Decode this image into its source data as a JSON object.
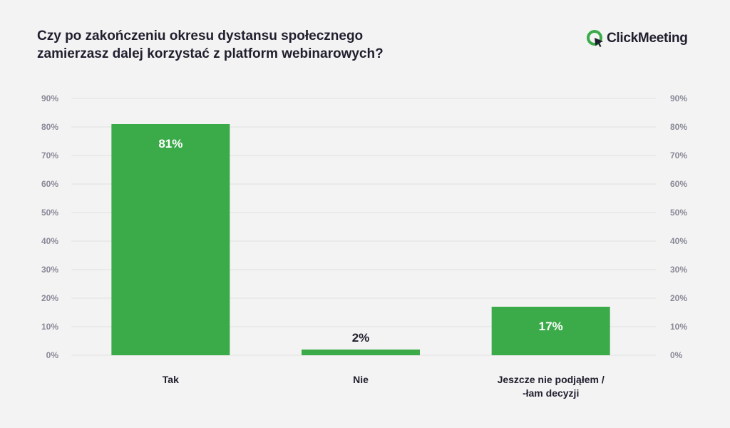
{
  "header": {
    "title_lines": [
      "Czy po zakończeniu okresu dystansu społecznego",
      "zamierzasz dalej korzystać z platform webinarowych?"
    ]
  },
  "brand": {
    "name": "ClickMeeting",
    "logo_icon": "clickmeeting-logo-icon",
    "color": "#3bab4a"
  },
  "chart_data": {
    "type": "bar",
    "categories": [
      [
        "Tak"
      ],
      [
        "Nie"
      ],
      [
        "Jeszcze nie podjąłem /",
        "-łam decyzji"
      ]
    ],
    "values": [
      81,
      2,
      17
    ],
    "value_labels": [
      "81%",
      "2%",
      "17%"
    ],
    "yticks": [
      "0%",
      "10%",
      "20%",
      "30%",
      "40%",
      "50%",
      "60%",
      "70%",
      "80%",
      "90%"
    ],
    "ylim": [
      0,
      90
    ],
    "yaxis_both_sides": true,
    "grid": true,
    "bar_color": "#3bab4a",
    "label_color_inside": "#ffffff",
    "label_color_outside": "#1f1f2e"
  }
}
